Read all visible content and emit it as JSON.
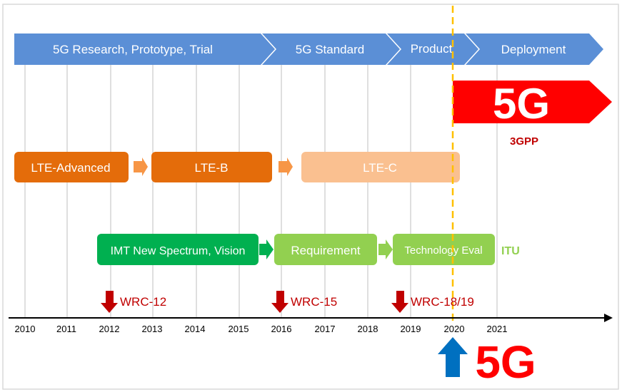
{
  "phases": [
    {
      "label": "5G Research, Prototype, Trial"
    },
    {
      "label": "5G Standard"
    },
    {
      "label": "Product"
    },
    {
      "label": "Deployment"
    }
  ],
  "banner_5g": {
    "label": "5G",
    "org": "3GPP"
  },
  "lte_track": [
    {
      "label": "LTE-Advanced"
    },
    {
      "label": "LTE-B"
    },
    {
      "label": "LTE-C"
    }
  ],
  "itu_track": {
    "items": [
      {
        "label": "IMT New Spectrum, Vision"
      },
      {
        "label": "Requirement"
      },
      {
        "label": "Technology Eval"
      }
    ],
    "org": "ITU"
  },
  "wrc_events": [
    {
      "label": "WRC-12"
    },
    {
      "label": "WRC-15"
    },
    {
      "label": "WRC-18/19"
    }
  ],
  "years": [
    "2010",
    "2011",
    "2012",
    "2013",
    "2014",
    "2015",
    "2016",
    "2017",
    "2018",
    "2019",
    "2020",
    "2021"
  ],
  "milestone": {
    "label": "5G"
  },
  "colors": {
    "phase_blue": "#5b8fd6",
    "lte_dark": "#e46c0a",
    "lte_light": "#fac090",
    "itu_dark": "#00b050",
    "itu_light": "#92d050",
    "red": "#ff0000",
    "dark_red": "#c00000",
    "dashed_line": "#ffc000",
    "up_arrow": "#0070c0"
  }
}
